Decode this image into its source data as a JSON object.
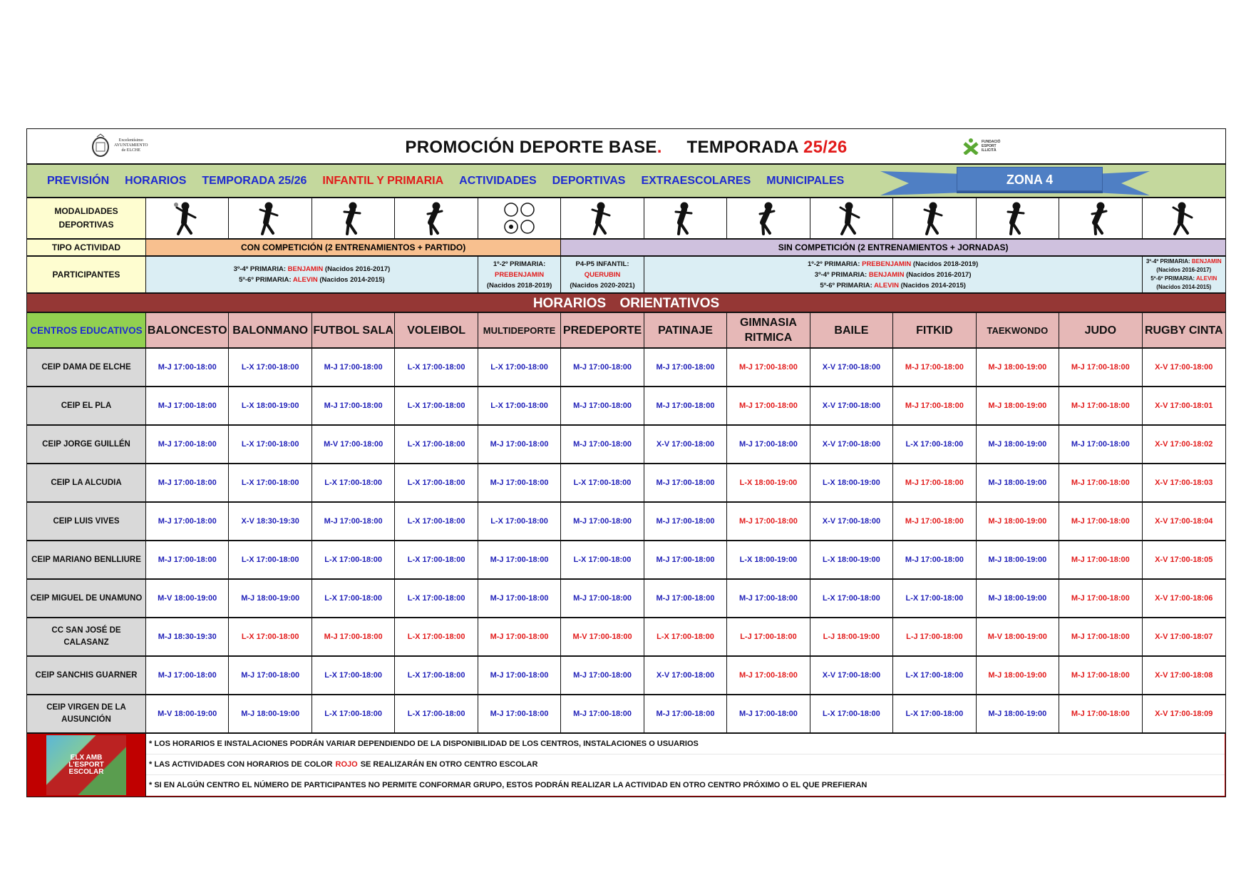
{
  "header": {
    "title_main": "PROMOCIÓN DEPORTE BASE",
    "title_dot": ".",
    "title_season_label": "TEMPORADA",
    "title_season": "25/26",
    "left_logo_text": [
      "Excelentísimo",
      "AYUNTAMIENTO",
      "de ELCHE"
    ],
    "right_logo_text": [
      "FUNDACIÓ",
      "ESPORT",
      "ILLICITÀ"
    ]
  },
  "banner": {
    "items": [
      {
        "label": "PREVISIÓN",
        "color": "blue"
      },
      {
        "label": "HORARIOS",
        "color": "blue"
      },
      {
        "label": "TEMPORADA 25/26",
        "color": "blue"
      },
      {
        "label": "INFANTIL Y PRIMARIA",
        "color": "red"
      },
      {
        "label": "ACTIVIDADES",
        "color": "blue"
      },
      {
        "label": "DEPORTIVAS",
        "color": "blue"
      },
      {
        "label": "EXTRAESCOLARES",
        "color": "blue"
      },
      {
        "label": "MUNICIPALES",
        "color": "blue"
      }
    ],
    "zone": "ZONA 4"
  },
  "labels": {
    "modalidades": "MODALIDADES DEPORTIVAS",
    "tipo": "TIPO ACTIVIDAD",
    "participantes": "PARTICIPANTES",
    "horarios_band": "HORARIOS ORIENTATIVOS",
    "centros": "CENTROS EDUCATIVOS"
  },
  "tipo": {
    "con": "CON  COMPETICIÓN (2 ENTRENAMIENTOS + PARTIDO)",
    "sin": "SIN COMPETICIÓN (2 ENTRENAMIENTOS + JORNADAS)"
  },
  "participants": [
    {
      "lines": [
        {
          "pre": "3º-4º PRIMARIA: ",
          "cat": "BENJAMIN",
          "post": " (Nacidos 2016-2017)"
        },
        {
          "pre": "5º-6º PRIMARIA: ",
          "cat": "ALEVIN",
          "post": " (Nacidos 2014-2015)"
        }
      ]
    },
    {
      "lines": [
        {
          "pre": "1º-2º PRIMARIA:",
          "cat": "",
          "post": ""
        },
        {
          "pre": "",
          "cat": "PREBENJAMIN",
          "post": ""
        },
        {
          "pre": "(Nacidos 2018-2019)",
          "cat": "",
          "post": ""
        }
      ]
    },
    {
      "lines": [
        {
          "pre": "P4-P5 INFANTIL:",
          "cat": "",
          "post": ""
        },
        {
          "pre": "",
          "cat": "QUERUBIN",
          "post": ""
        },
        {
          "pre": "(Nacidos 2020-2021)",
          "cat": "",
          "post": ""
        }
      ]
    },
    {
      "lines": [
        {
          "pre": "1º-2º PRIMARIA: ",
          "cat": "PREBENJAMIN",
          "post": " (Nacidos 2018-2019)"
        },
        {
          "pre": "3º-4º PRIMARIA: ",
          "cat": "BENJAMIN",
          "post": " (Nacidos 2016-2017)"
        },
        {
          "pre": "5º-6º PRIMARIA: ",
          "cat": "ALEVIN",
          "post": " (Nacidos 2014-2015)"
        }
      ]
    },
    {
      "lines": [
        {
          "pre": "3º-4º PRIMARIA: ",
          "cat": "BENJAMIN",
          "post": ""
        },
        {
          "pre": "(Nacidos 2016-2017)",
          "cat": "",
          "post": ""
        },
        {
          "pre": "5º-6º PRIMARIA: ",
          "cat": "ALEVIN",
          "post": ""
        },
        {
          "pre": "(Nacidos 2014-2015)",
          "cat": "",
          "post": ""
        }
      ]
    }
  ],
  "sports": [
    {
      "name": "BALONCESTO",
      "icon": "basketball-player-icon"
    },
    {
      "name": "BALONMANO",
      "icon": "handball-player-icon"
    },
    {
      "name": "FUTBOL SALA",
      "icon": "football-player-icon"
    },
    {
      "name": "VOLEIBOL",
      "icon": "volleyball-player-icon"
    },
    {
      "name": "MULTIDEPORTE",
      "icon": "multisport-balls-icon"
    },
    {
      "name": "PREDEPORTE",
      "icon": "children-running-icon"
    },
    {
      "name": "PATINAJE",
      "icon": "roller-skater-icon"
    },
    {
      "name": "GIMNASIA RITMICA",
      "icon": "gymnast-icon"
    },
    {
      "name": "BAILE",
      "icon": "dancer-icon"
    },
    {
      "name": "FITKID",
      "icon": "fitkid-backbend-icon"
    },
    {
      "name": "TAEKWONDO",
      "icon": "taekwondo-kick-icon"
    },
    {
      "name": "JUDO",
      "icon": "judo-fighter-icon"
    },
    {
      "name": "RUGBY CINTA",
      "icon": "rugby-player-icon"
    }
  ],
  "colors": {
    "blue": "#1f1fb8",
    "red": "#e21b1b",
    "header_band": "#953735",
    "centros_header": "#92d050",
    "sport_header": "#e6b8b7"
  },
  "rows": [
    {
      "center": "CEIP DAMA DE ELCHE",
      "times": [
        "M-J 17:00-18:00",
        "L-X 17:00-18:00",
        "M-J 17:00-18:00",
        "L-X 17:00-18:00",
        "L-X 17:00-18:00",
        "M-J 17:00-18:00",
        "M-J 17:00-18:00",
        "M-J 17:00-18:00",
        "X-V 17:00-18:00",
        "M-J 17:00-18:00",
        "M-J 18:00-19:00",
        "M-J 17:00-18:00",
        "X-V 17:00-18:00"
      ],
      "red": [
        7,
        9,
        10,
        11,
        12
      ]
    },
    {
      "center": "CEIP EL PLA",
      "times": [
        "M-J 17:00-18:00",
        "L-X 18:00-19:00",
        "M-J 17:00-18:00",
        "L-X 17:00-18:00",
        "L-X 17:00-18:00",
        "M-J 17:00-18:00",
        "M-J 17:00-18:00",
        "M-J 17:00-18:00",
        "X-V 17:00-18:00",
        "M-J 17:00-18:00",
        "M-J 18:00-19:00",
        "M-J 17:00-18:00",
        "X-V 17:00-18:01"
      ],
      "red": [
        7,
        9,
        10,
        11,
        12
      ]
    },
    {
      "center": "CEIP JORGE GUILLÉN",
      "times": [
        "M-J 17:00-18:00",
        "L-X 17:00-18:00",
        "M-V 17:00-18:00",
        "L-X 17:00-18:00",
        "M-J 17:00-18:00",
        "M-J 17:00-18:00",
        "X-V 17:00-18:00",
        "M-J 17:00-18:00",
        "X-V 17:00-18:00",
        "L-X 17:00-18:00",
        "M-J 18:00-19:00",
        "M-J 17:00-18:00",
        "X-V 17:00-18:02"
      ],
      "red": [
        12
      ]
    },
    {
      "center": "CEIP LA ALCUDIA",
      "times": [
        "M-J 17:00-18:00",
        "L-X 17:00-18:00",
        "L-X 17:00-18:00",
        "L-X 17:00-18:00",
        "M-J 17:00-18:00",
        "L-X 17:00-18:00",
        "M-J 17:00-18:00",
        "L-X 18:00-19:00",
        "L-X 18:00-19:00",
        "M-J 17:00-18:00",
        "M-J 18:00-19:00",
        "M-J 17:00-18:00",
        "X-V 17:00-18:03"
      ],
      "red": [
        7,
        9,
        11,
        12
      ]
    },
    {
      "center": "CEIP LUIS VIVES",
      "times": [
        "M-J 17:00-18:00",
        "X-V 18:30-19:30",
        "M-J 17:00-18:00",
        "L-X 17:00-18:00",
        "L-X 17:00-18:00",
        "M-J 17:00-18:00",
        "M-J 17:00-18:00",
        "M-J 17:00-18:00",
        "X-V 17:00-18:00",
        "M-J 17:00-18:00",
        "M-J 18:00-19:00",
        "M-J 17:00-18:00",
        "X-V 17:00-18:04"
      ],
      "red": [
        7,
        9,
        10,
        11,
        12
      ]
    },
    {
      "center": "CEIP MARIANO BENLLIURE",
      "times": [
        "M-J 17:00-18:00",
        "L-X 17:00-18:00",
        "L-X 17:00-18:00",
        "L-X 17:00-18:00",
        "M-J 17:00-18:00",
        "L-X 17:00-18:00",
        "M-J 17:00-18:00",
        "L-X 18:00-19:00",
        "L-X 18:00-19:00",
        "M-J 17:00-18:00",
        "M-J 18:00-19:00",
        "M-J 17:00-18:00",
        "X-V 17:00-18:05"
      ],
      "red": [
        11,
        12
      ]
    },
    {
      "center": "CEIP MIGUEL DE UNAMUNO",
      "times": [
        "M-V 18:00-19:00",
        "M-J 18:00-19:00",
        "L-X 17:00-18:00",
        "L-X 17:00-18:00",
        "M-J 17:00-18:00",
        "M-J 17:00-18:00",
        "M-J 17:00-18:00",
        "M-J 17:00-18:00",
        "L-X 17:00-18:00",
        "L-X 17:00-18:00",
        "M-J 18:00-19:00",
        "M-J 17:00-18:00",
        "X-V 17:00-18:06"
      ],
      "red": [
        11,
        12
      ]
    },
    {
      "center": "CC SAN JOSÉ DE CALASANZ",
      "times": [
        "M-J 18:30-19:30",
        "L-X 17:00-18:00",
        "M-J 17:00-18:00",
        "L-X 17:00-18:00",
        "M-J 17:00-18:00",
        "M-V 17:00-18:00",
        "L-X 17:00-18:00",
        "L-J 17:00-18:00",
        "L-J 18:00-19:00",
        "L-J 17:00-18:00",
        "M-V 18:00-19:00",
        "M-J 17:00-18:00",
        "X-V 17:00-18:07"
      ],
      "red": [
        1,
        2,
        3,
        4,
        5,
        6,
        7,
        8,
        9,
        10,
        11,
        12
      ]
    },
    {
      "center": "CEIP SANCHIS GUARNER",
      "times": [
        "M-J 17:00-18:00",
        "M-J 17:00-18:00",
        "L-X 17:00-18:00",
        "L-X 17:00-18:00",
        "M-J 17:00-18:00",
        "M-J 17:00-18:00",
        "X-V 17:00-18:00",
        "M-J 17:00-18:00",
        "X-V 17:00-18:00",
        "L-X 17:00-18:00",
        "M-J 18:00-19:00",
        "M-J 17:00-18:00",
        "X-V 17:00-18:08"
      ],
      "red": [
        7,
        10,
        11,
        12
      ]
    },
    {
      "center": "CEIP VIRGEN DE LA AUSUNCIÓN",
      "times": [
        "M-V 18:00-19:00",
        "M-J 18:00-19:00",
        "L-X 17:00-18:00",
        "L-X 17:00-18:00",
        "M-J 17:00-18:00",
        "M-J 17:00-18:00",
        "M-J 17:00-18:00",
        "M-J 17:00-18:00",
        "L-X 17:00-18:00",
        "L-X 17:00-18:00",
        "M-J 18:00-19:00",
        "M-J 17:00-18:00",
        "X-V 17:00-18:09"
      ],
      "red": [
        11,
        12
      ]
    }
  ],
  "footer": {
    "logo_text": "ELX AMB L'ESPORT ESCOLAR",
    "note1": "* LOS HORARIOS E INSTALACIONES PODRÁN VARIAR DEPENDIENDO DE LA DISPONIBILIDAD DE LOS CENTROS, INSTALACIONES O USUARIOS",
    "note2_pre": "* LAS ACTIVIDADES CON HORARIOS DE COLOR",
    "note2_red": "ROJO",
    "note2_post": "SE REALIZARÁN EN OTRO CENTRO ESCOLAR",
    "note3": "* SI EN ALGÚN CENTRO EL NÚMERO DE PARTICIPANTES NO PERMITE CONFORMAR GRUPO, ESTOS PODRÁN REALIZAR LA ACTIVIDAD EN OTRO CENTRO PRÓXIMO O EL QUE PREFIERAN"
  }
}
